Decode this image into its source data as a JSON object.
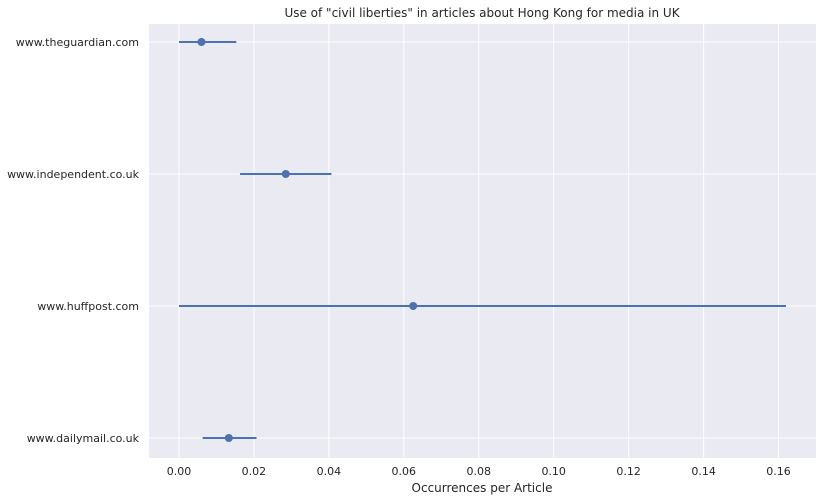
{
  "chart_data": {
    "type": "scatter",
    "title": "Use of \"civil liberties\" in articles about Hong Kong for media in UK",
    "xlabel": "Occurrences per Article",
    "ylabel": "",
    "xlim": [
      -0.008,
      0.17
    ],
    "xticks": [
      0.0,
      0.02,
      0.04,
      0.06,
      0.08,
      0.1,
      0.12,
      0.14,
      0.16
    ],
    "xtick_labels": [
      "0.00",
      "0.02",
      "0.04",
      "0.06",
      "0.08",
      "0.10",
      "0.12",
      "0.14",
      "0.16"
    ],
    "categories": [
      "www.theguardian.com",
      "www.independent.co.uk",
      "www.huffpost.com",
      "www.dailymail.co.uk"
    ],
    "values": [
      0.006,
      0.0285,
      0.0625,
      0.0133
    ],
    "ci_low": [
      0.0,
      0.0163,
      0.0,
      0.0063
    ],
    "ci_high": [
      0.0153,
      0.0407,
      0.162,
      0.0207
    ],
    "grid": true,
    "legend": "none",
    "colors": {
      "background": "#eaeaf2",
      "grid": "#ffffff",
      "marker": "#4c72b0",
      "text": "#262626"
    }
  }
}
